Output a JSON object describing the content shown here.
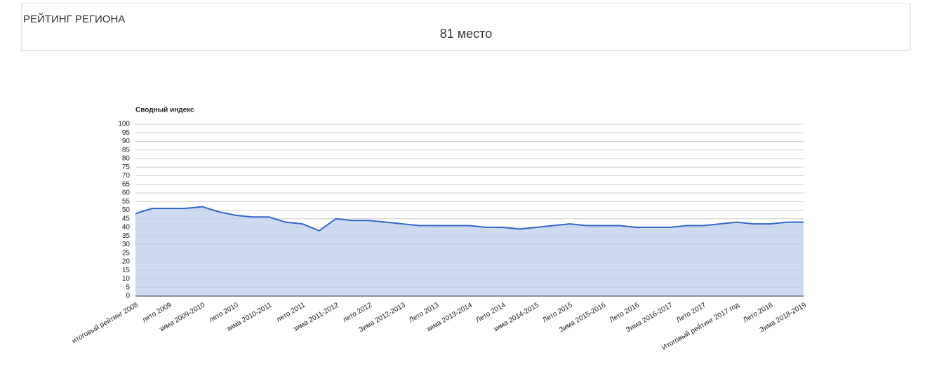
{
  "header": {
    "title": "РЕЙТИНГ РЕГИОНА",
    "rank": "81 место"
  },
  "chart_data": {
    "type": "area",
    "title": "Сводный индекс",
    "categories": [
      "итоговый рейтинг 2008",
      null,
      "лето 2009",
      null,
      "зима 2009-2010",
      null,
      "лето 2010",
      null,
      "зима 2010-2011",
      null,
      "лето 2011",
      null,
      "зима 2011-2012",
      null,
      "лето 2012",
      null,
      "Зима 2012-2013",
      null,
      "Лето 2013",
      null,
      "зима 2013-2014",
      null,
      "Лето 2014",
      null,
      "зима 2014-2015",
      null,
      "Лето 2015",
      null,
      "Зима 2015-2016",
      null,
      "Лето 2016",
      null,
      "Зима 2016-2017",
      null,
      "Лето 2017",
      null,
      "Итоговый рейтинг 2017 год",
      null,
      "Лето 2018",
      null,
      "Зима 2018-2019"
    ],
    "values": [
      48,
      51,
      51,
      51,
      52,
      49,
      47,
      46,
      46,
      43,
      42,
      38,
      45,
      44,
      44,
      43,
      42,
      41,
      41,
      41,
      41,
      40,
      40,
      39,
      40,
      41,
      42,
      41,
      41,
      41,
      40,
      40,
      40,
      41,
      41,
      42,
      43,
      42,
      42,
      43,
      43
    ],
    "color": "#3366cc",
    "fill": "#c2d0ef",
    "ylim": [
      0,
      100
    ],
    "yticks": [
      0,
      5,
      10,
      15,
      20,
      25,
      30,
      35,
      40,
      45,
      50,
      55,
      60,
      65,
      70,
      75,
      80,
      85,
      90,
      95,
      100
    ],
    "grid": true
  }
}
